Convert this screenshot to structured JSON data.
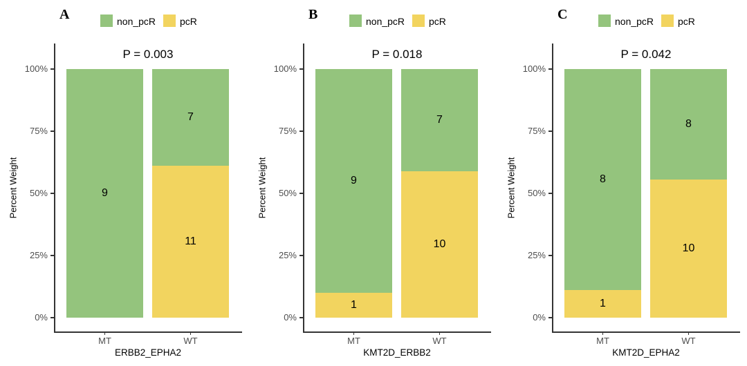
{
  "colors": {
    "non_pcR": "#94c47d",
    "pcR": "#f2d45f",
    "axis": "#333333",
    "tick_label": "#4d4d4d",
    "text": "#000000"
  },
  "legend": {
    "items": [
      {
        "label": "non_pcR",
        "color_key": "non_pcR"
      },
      {
        "label": "pcR",
        "color_key": "pcR"
      }
    ]
  },
  "chart_data": [
    {
      "type": "bar",
      "stacked": true,
      "percent": true,
      "panel_letter": "A",
      "title": "P = 0.003",
      "xlabel": "ERBB2_EPHA2",
      "ylabel": "Percent Weight",
      "categories": [
        "MT",
        "WT"
      ],
      "y_ticks": [
        "0%",
        "25%",
        "50%",
        "75%",
        "100%"
      ],
      "ylim": [
        0,
        100
      ],
      "legend_position": "top",
      "grid": false,
      "series": [
        {
          "name": "non_pcR",
          "values": [
            9,
            7
          ]
        },
        {
          "name": "pcR",
          "values": [
            0,
            11
          ]
        }
      ]
    },
    {
      "type": "bar",
      "stacked": true,
      "percent": true,
      "panel_letter": "B",
      "title": "P = 0.018",
      "xlabel": "KMT2D_ERBB2",
      "ylabel": "Percent Weight",
      "categories": [
        "MT",
        "WT"
      ],
      "y_ticks": [
        "0%",
        "25%",
        "50%",
        "75%",
        "100%"
      ],
      "ylim": [
        0,
        100
      ],
      "legend_position": "top",
      "grid": false,
      "series": [
        {
          "name": "non_pcR",
          "values": [
            9,
            7
          ]
        },
        {
          "name": "pcR",
          "values": [
            1,
            10
          ]
        }
      ]
    },
    {
      "type": "bar",
      "stacked": true,
      "percent": true,
      "panel_letter": "C",
      "title": "P = 0.042",
      "xlabel": "KMT2D_EPHA2",
      "ylabel": "Percent Weight",
      "categories": [
        "MT",
        "WT"
      ],
      "y_ticks": [
        "0%",
        "25%",
        "50%",
        "75%",
        "100%"
      ],
      "ylim": [
        0,
        100
      ],
      "legend_position": "top",
      "grid": false,
      "series": [
        {
          "name": "non_pcR",
          "values": [
            8,
            8
          ]
        },
        {
          "name": "pcR",
          "values": [
            1,
            10
          ]
        }
      ]
    }
  ]
}
